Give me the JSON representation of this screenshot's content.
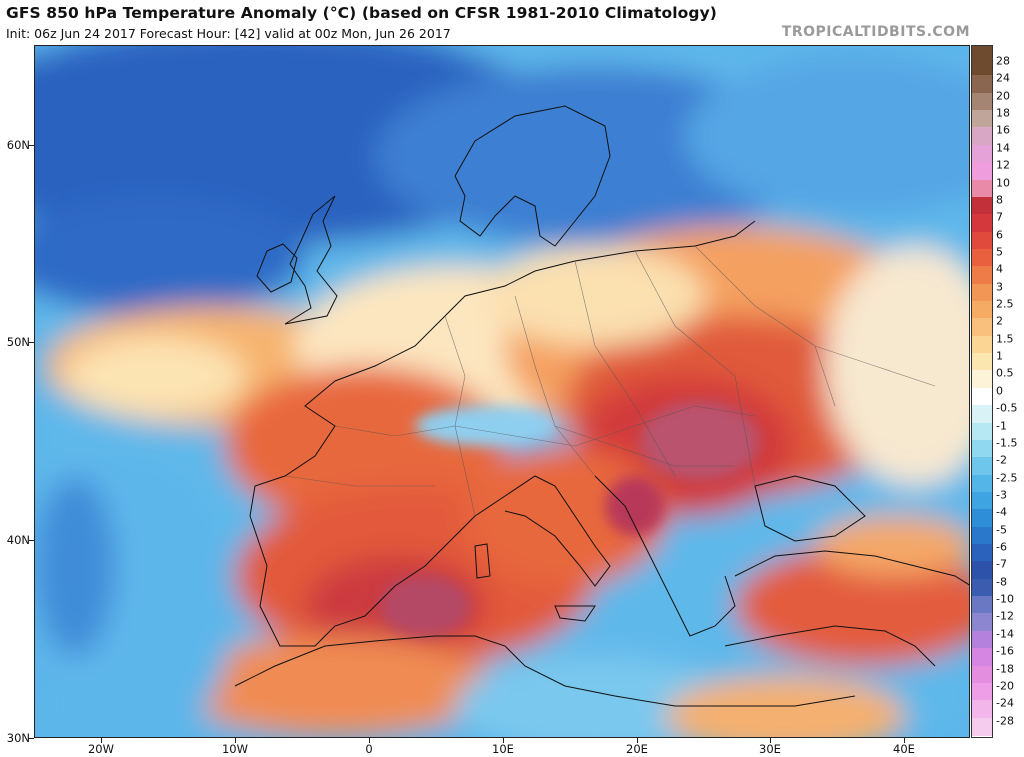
{
  "header": {
    "title": "GFS 850 hPa Temperature Anomaly (°C) (based on CFSR 1981-2010 Climatology)",
    "subtitle": "Init: 06z Jun 24 2017   Forecast Hour: [42]   valid at 00z Mon, Jun 26 2017",
    "brand": "TROPICALTIDBITS.COM"
  },
  "axes": {
    "lat_labels": [
      "60N",
      "50N",
      "40N",
      "30N"
    ],
    "lon_labels": [
      "20W",
      "10W",
      "0",
      "10E",
      "20E",
      "30E",
      "40E"
    ]
  },
  "colorbar": {
    "labels": [
      "28",
      "24",
      "20",
      "18",
      "16",
      "14",
      "12",
      "10",
      "8",
      "7",
      "6",
      "5",
      "4",
      "3",
      "2.5",
      "2",
      "1.5",
      "1",
      "0.5",
      "0",
      "-0.5",
      "-1",
      "-1.5",
      "-2",
      "-2.5",
      "-3",
      "-4",
      "-5",
      "-6",
      "-7",
      "-8",
      "-10",
      "-12",
      "-14",
      "-16",
      "-18",
      "-20",
      "-24",
      "-28"
    ],
    "colors": [
      "#6e4a2e",
      "#8a6650",
      "#a48574",
      "#c0a59a",
      "#d8a7c6",
      "#e4a2d8",
      "#ef9ddc",
      "#e98aa8",
      "#c2303a",
      "#d4383c",
      "#e04a3c",
      "#e8603e",
      "#ee7c48",
      "#f29656",
      "#f5ab64",
      "#f8c07c",
      "#fad594",
      "#fce6b0",
      "#fdf3d8",
      "#ffffff",
      "#d8f2f6",
      "#b6e8f3",
      "#8fd8f0",
      "#6ec6ec",
      "#54b6e8",
      "#3ea4e2",
      "#2e8ed8",
      "#2a78cc",
      "#2a62bc",
      "#2c52aa",
      "#3c5cb0",
      "#6a78c4",
      "#8c86d0",
      "#b482dc",
      "#d486e2",
      "#e48ee0",
      "#ee9ee6",
      "#f2b6ea",
      "#f6ccee"
    ]
  }
}
